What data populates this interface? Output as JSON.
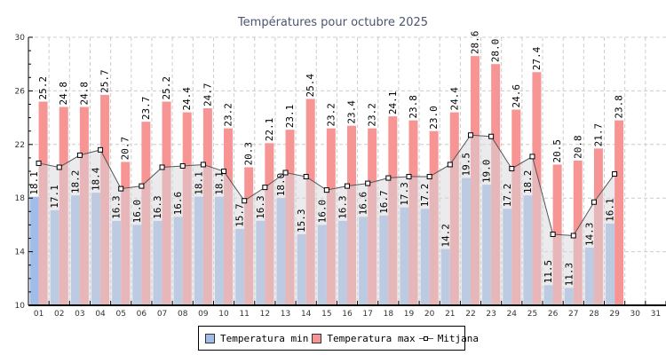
{
  "chart_data": {
    "type": "bar",
    "title": "Températures pour octubre 2025",
    "xlabel": "",
    "ylabel": "",
    "ylim": [
      10,
      30
    ],
    "yticks": [
      "10",
      "14",
      "18",
      "22",
      "26",
      "30"
    ],
    "grid": true,
    "legend_position": "bottom",
    "categories": [
      "01",
      "02",
      "03",
      "04",
      "05",
      "06",
      "07",
      "08",
      "09",
      "10",
      "11",
      "12",
      "13",
      "14",
      "15",
      "16",
      "17",
      "18",
      "19",
      "20",
      "21",
      "22",
      "23",
      "24",
      "25",
      "26",
      "27",
      "28",
      "29",
      "30",
      "31"
    ],
    "series": [
      {
        "name": "Temperatura min",
        "type": "bar",
        "color": "#a0bce8",
        "values": [
          18.1,
          17.1,
          18.2,
          18.4,
          16.3,
          16.0,
          16.3,
          16.6,
          18.1,
          18.1,
          15.7,
          16.3,
          18.0,
          15.3,
          16.0,
          16.3,
          16.6,
          16.7,
          17.3,
          17.2,
          14.2,
          19.5,
          19.0,
          17.2,
          18.2,
          11.5,
          11.3,
          14.3,
          16.1,
          null,
          null
        ]
      },
      {
        "name": "Temperatura max",
        "type": "bar",
        "color": "#f79595",
        "values": [
          25.2,
          24.8,
          24.8,
          25.7,
          20.7,
          23.7,
          25.2,
          24.4,
          24.7,
          23.2,
          20.3,
          22.1,
          23.1,
          25.4,
          23.2,
          23.4,
          23.2,
          24.1,
          23.8,
          23.0,
          24.4,
          28.6,
          28.0,
          24.6,
          27.4,
          20.5,
          20.8,
          21.7,
          23.8,
          null,
          null
        ]
      },
      {
        "name": "Mitjana",
        "type": "line",
        "color": "#555555",
        "values": [
          20.6,
          20.3,
          21.2,
          21.6,
          18.7,
          18.9,
          20.3,
          20.4,
          20.5,
          20.0,
          17.8,
          18.8,
          19.9,
          19.6,
          18.6,
          18.9,
          19.1,
          19.5,
          19.6,
          19.6,
          20.5,
          22.7,
          22.6,
          20.2,
          21.1,
          15.3,
          15.2,
          17.7,
          19.8,
          null,
          null
        ]
      }
    ]
  },
  "legend": {
    "min_label": "Temperatura min",
    "max_label": "Temperatura max",
    "mean_label": "Mitjana",
    "min_color": "#a0bce8",
    "max_color": "#f79595"
  }
}
